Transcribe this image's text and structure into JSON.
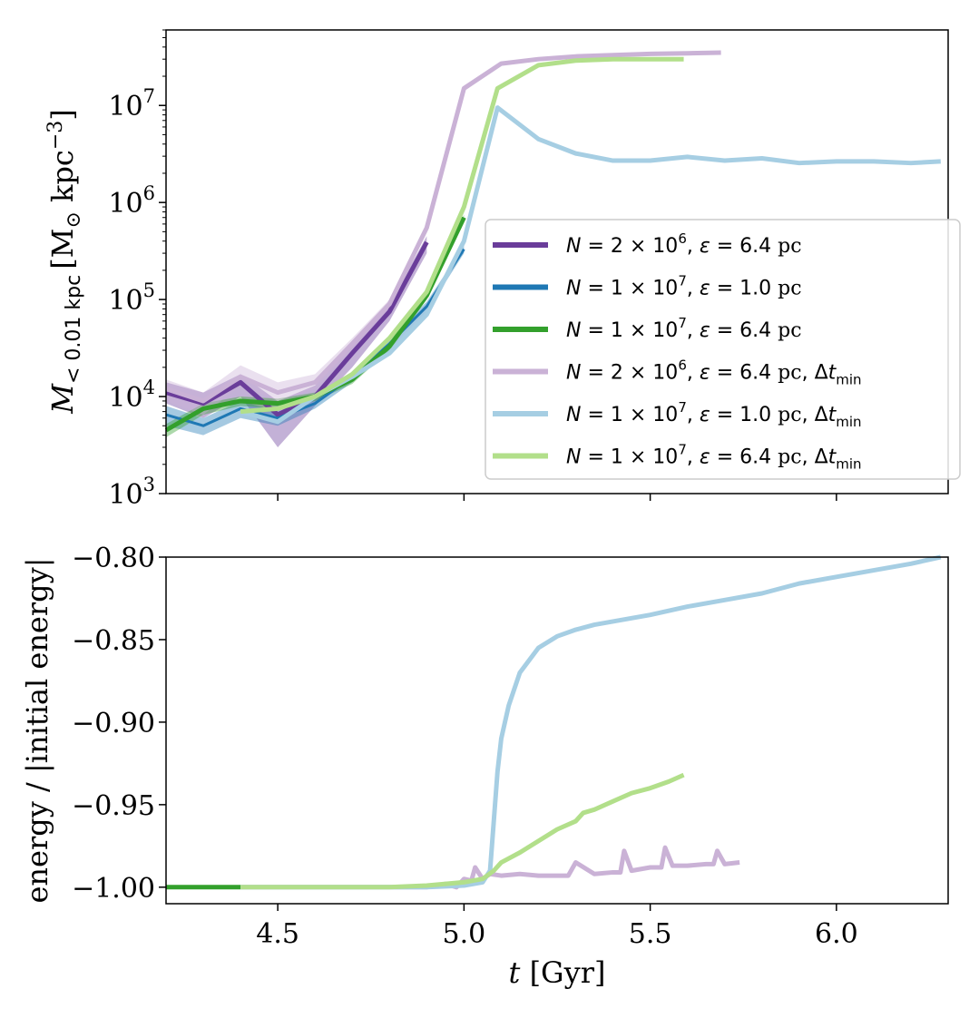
{
  "chart_data": [
    {
      "type": "line",
      "panel": "top",
      "yscale": "log",
      "xlim": [
        4.2,
        6.3
      ],
      "ylim": [
        1000,
        60000000
      ],
      "ylabel": {
        "main": "M",
        "sub": "< 0.01 kpc",
        "unit_open": "[M",
        "unit_sun": "⊙",
        "unit_mid": " kpc",
        "unit_exp": "−3",
        "unit_close": "]"
      },
      "ytick_labels": [
        {
          "value": 1000,
          "base": "10",
          "exp": "3"
        },
        {
          "value": 10000,
          "base": "10",
          "exp": "4"
        },
        {
          "value": 100000,
          "base": "10",
          "exp": "5"
        },
        {
          "value": 1000000,
          "base": "10",
          "exp": "6"
        },
        {
          "value": 10000000,
          "base": "10",
          "exp": "7"
        }
      ],
      "xticks": [
        4.5,
        5.0,
        5.5,
        6.0
      ],
      "legend_position": "lower-right",
      "series": [
        {
          "name": "N = 2 × 10^6, ε = 6.4 pc",
          "legend": {
            "n_exp": "6",
            "eps": "6.4",
            "dt": false
          },
          "color": "#6a3d9a",
          "x": [
            4.2,
            4.3,
            4.4,
            4.5,
            4.6,
            4.7,
            4.8,
            4.9
          ],
          "y": [
            11000,
            8500,
            14000,
            6500,
            10000,
            28000,
            75000,
            390000
          ],
          "band_low": [
            8500,
            6000,
            10000,
            3000,
            8000,
            20000,
            60000,
            300000
          ],
          "band_high": [
            14000,
            11000,
            17000,
            9000,
            13000,
            34000,
            90000,
            450000
          ]
        },
        {
          "name": "N = 1 × 10^7, ε = 1.0 pc",
          "legend": {
            "n_exp": "7",
            "eps": "1.0",
            "dt": false
          },
          "color": "#1f78b4",
          "x": [
            4.2,
            4.3,
            4.4,
            4.5,
            4.6,
            4.7,
            4.8,
            4.9,
            5.0
          ],
          "y": [
            6500,
            5000,
            7500,
            6000,
            8500,
            16000,
            35000,
            85000,
            330000
          ],
          "band_low": [
            5000,
            4000,
            6000,
            5000,
            7500,
            14000,
            30000,
            75000,
            300000
          ],
          "band_high": [
            8000,
            6000,
            9000,
            7000,
            9500,
            18000,
            40000,
            95000,
            360000
          ]
        },
        {
          "name": "N = 1 × 10^7, ε = 6.4 pc",
          "legend": {
            "n_exp": "7",
            "eps": "6.4",
            "dt": false
          },
          "color": "#33a02c",
          "x": [
            4.2,
            4.3,
            4.4,
            4.5,
            4.6,
            4.7,
            4.8,
            4.9,
            5.0
          ],
          "y": [
            4500,
            7500,
            9000,
            8500,
            10000,
            15000,
            33000,
            110000,
            700000
          ],
          "band_low": [
            3800,
            6500,
            8000,
            7500,
            9000,
            13500,
            30000,
            100000,
            650000
          ],
          "band_high": [
            5200,
            8500,
            10000,
            9500,
            11000,
            16500,
            36000,
            120000,
            750000
          ]
        },
        {
          "name": "N = 2 × 10^6, ε = 6.4 pc, Δt_min",
          "legend": {
            "n_exp": "6",
            "eps": "6.4",
            "dt": true
          },
          "color": "#cab2d6",
          "x": [
            4.2,
            4.3,
            4.4,
            4.5,
            4.6,
            4.7,
            4.8,
            4.9,
            5.0,
            5.1,
            5.2,
            5.3,
            5.4,
            5.5,
            5.6,
            5.69
          ],
          "y": [
            12000,
            9000,
            16000,
            11000,
            14000,
            35000,
            90000,
            550000,
            15000000,
            27000000,
            30000000,
            32000000,
            33000000,
            34000000,
            34500000,
            35000000
          ],
          "band_low": [
            9000,
            6500,
            13000,
            9000,
            12000,
            30000,
            80000,
            500000,
            14000000,
            26000000,
            29000000,
            31000000,
            32000000,
            33000000,
            34000000,
            34500000
          ],
          "band_high": [
            15000,
            11000,
            21000,
            14000,
            17000,
            40000,
            100000,
            600000,
            16000000,
            28000000,
            31000000,
            33000000,
            34000000,
            35000000,
            35000000,
            35500000
          ]
        },
        {
          "name": "N = 1 × 10^7, ε = 1.0 pc, Δt_min",
          "legend": {
            "n_exp": "7",
            "eps": "1.0",
            "dt": true
          },
          "color": "#a6cee3",
          "x": [
            4.4,
            4.5,
            4.6,
            4.7,
            4.8,
            4.9,
            5.0,
            5.09,
            5.2,
            5.3,
            5.4,
            5.5,
            5.6,
            5.7,
            5.8,
            5.9,
            6.0,
            6.1,
            6.2,
            6.28
          ],
          "y": [
            7000,
            5500,
            10000,
            16000,
            28000,
            70000,
            400000,
            9500000,
            4500000,
            3200000,
            2700000,
            2700000,
            2950000,
            2700000,
            2850000,
            2550000,
            2650000,
            2650000,
            2550000,
            2650000
          ]
        },
        {
          "name": "N = 1 × 10^7, ε = 6.4 pc, Δt_min",
          "legend": {
            "n_exp": "7",
            "eps": "6.4",
            "dt": true
          },
          "color": "#b2df8a",
          "x": [
            4.4,
            4.5,
            4.6,
            4.7,
            4.8,
            4.9,
            5.0,
            5.09,
            5.2,
            5.3,
            5.4,
            5.5,
            5.59
          ],
          "y": [
            7000,
            7500,
            10000,
            17000,
            40000,
            120000,
            900000,
            15000000,
            26000000,
            29000000,
            30000000,
            30000000,
            30000000
          ]
        }
      ]
    },
    {
      "type": "line",
      "panel": "bottom",
      "xlim": [
        4.2,
        6.3
      ],
      "ylim": [
        -1.01,
        -0.8
      ],
      "xlabel": {
        "var": "t",
        "unit": " [Gyr]"
      },
      "ylabel": "energy / |initial energy|",
      "xtick_labels": [
        "4.5",
        "5.0",
        "5.5",
        "6.0"
      ],
      "xticks": [
        4.5,
        5.0,
        5.5,
        6.0
      ],
      "ytick_labels": [
        "−1.00",
        "−0.95",
        "−0.90",
        "−0.85",
        "−0.80"
      ],
      "yticks": [
        -1.0,
        -0.95,
        -0.9,
        -0.85,
        -0.8
      ],
      "series": [
        {
          "name": "N = 1 × 10^7, ε = 6.4 pc",
          "color": "#33a02c",
          "x": [
            4.2,
            4.4
          ],
          "y": [
            -1.0,
            -1.0
          ]
        },
        {
          "name": "N = 2 × 10^6, ε = 6.4 pc, Δt_min",
          "color": "#cab2d6",
          "x": [
            4.4,
            4.8,
            4.9,
            4.95,
            4.98,
            5.0,
            5.02,
            5.03,
            5.05,
            5.07,
            5.1,
            5.15,
            5.2,
            5.25,
            5.28,
            5.3,
            5.35,
            5.4,
            5.42,
            5.43,
            5.45,
            5.5,
            5.53,
            5.54,
            5.56,
            5.6,
            5.65,
            5.67,
            5.68,
            5.7,
            5.74
          ],
          "y": [
            -1.0,
            -1.0,
            -1.0,
            -0.998,
            -1.0,
            -0.995,
            -0.996,
            -0.988,
            -0.995,
            -0.992,
            -0.993,
            -0.992,
            -0.993,
            -0.993,
            -0.993,
            -0.985,
            -0.992,
            -0.991,
            -0.991,
            -0.978,
            -0.99,
            -0.988,
            -0.988,
            -0.976,
            -0.987,
            -0.987,
            -0.986,
            -0.986,
            -0.978,
            -0.986,
            -0.985
          ]
        },
        {
          "name": "N = 1 × 10^7, ε = 1.0 pc, Δt_min",
          "color": "#a6cee3",
          "x": [
            4.4,
            4.9,
            5.0,
            5.05,
            5.07,
            5.08,
            5.09,
            5.1,
            5.12,
            5.15,
            5.2,
            5.25,
            5.3,
            5.35,
            5.4,
            5.5,
            5.6,
            5.7,
            5.8,
            5.9,
            6.0,
            6.1,
            6.2,
            6.28
          ],
          "y": [
            -1.0,
            -1.0,
            -0.999,
            -0.997,
            -0.99,
            -0.96,
            -0.93,
            -0.91,
            -0.89,
            -0.87,
            -0.855,
            -0.848,
            -0.844,
            -0.841,
            -0.839,
            -0.835,
            -0.83,
            -0.826,
            -0.822,
            -0.816,
            -0.812,
            -0.808,
            -0.804,
            -0.8
          ]
        },
        {
          "name": "N = 1 × 10^7, ε = 6.4 pc, Δt_min",
          "color": "#b2df8a",
          "x": [
            4.4,
            4.8,
            4.9,
            5.0,
            5.05,
            5.08,
            5.1,
            5.15,
            5.2,
            5.25,
            5.3,
            5.32,
            5.35,
            5.4,
            5.45,
            5.5,
            5.55,
            5.59
          ],
          "y": [
            -1.0,
            -1.0,
            -0.999,
            -0.997,
            -0.995,
            -0.99,
            -0.985,
            -0.979,
            -0.972,
            -0.965,
            -0.96,
            -0.955,
            -0.953,
            -0.948,
            -0.943,
            -0.94,
            -0.936,
            -0.932
          ]
        }
      ]
    }
  ]
}
